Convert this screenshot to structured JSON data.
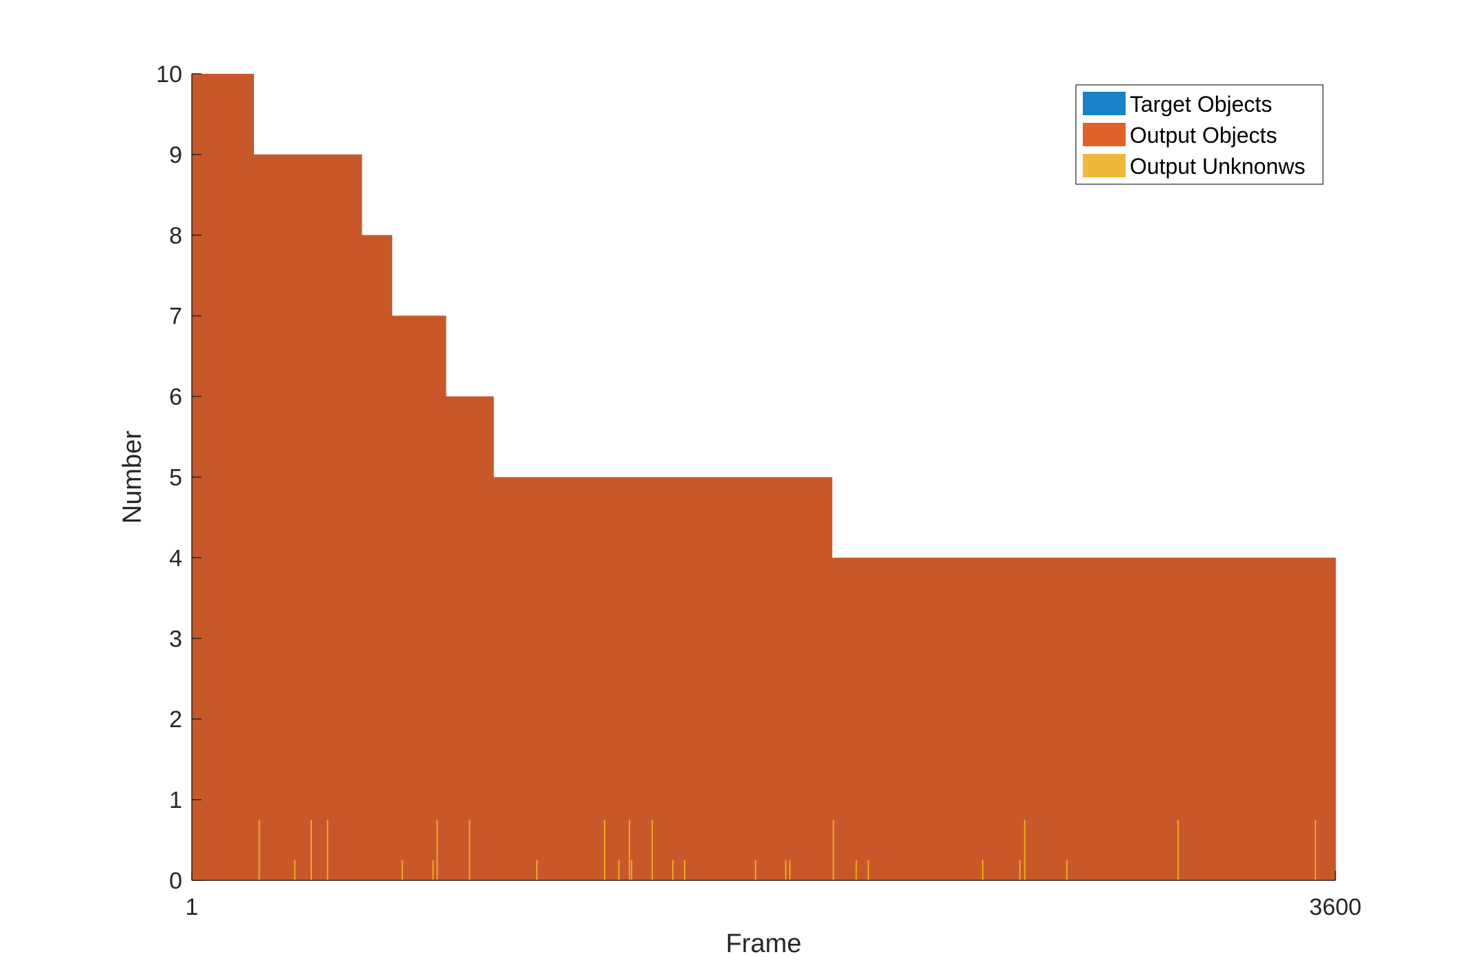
{
  "chart_data": {
    "type": "bar",
    "xlabel": "Frame",
    "ylabel": "Number",
    "xlim": [
      1,
      3600
    ],
    "ylim": [
      0,
      10
    ],
    "xticks": [
      {
        "value": 1,
        "label": "1"
      },
      {
        "value": 3600,
        "label": "3600"
      }
    ],
    "yticks": [
      {
        "value": 0,
        "label": "0"
      },
      {
        "value": 1,
        "label": "1"
      },
      {
        "value": 2,
        "label": "2"
      },
      {
        "value": 3,
        "label": "3"
      },
      {
        "value": 4,
        "label": "4"
      },
      {
        "value": 5,
        "label": "5"
      },
      {
        "value": 6,
        "label": "6"
      },
      {
        "value": 7,
        "label": "7"
      },
      {
        "value": 8,
        "label": "8"
      },
      {
        "value": 9,
        "label": "9"
      },
      {
        "value": 10,
        "label": "10"
      }
    ],
    "grid": false,
    "legend_position": "top-right",
    "series": [
      {
        "name": "Target Objects",
        "color": "#0072BD",
        "steps": [
          {
            "from": 1,
            "to": 195,
            "value": 10
          },
          {
            "from": 195,
            "to": 535,
            "value": 9
          },
          {
            "from": 535,
            "to": 630,
            "value": 8
          },
          {
            "from": 630,
            "to": 800,
            "value": 7
          },
          {
            "from": 800,
            "to": 950,
            "value": 6
          },
          {
            "from": 950,
            "to": 2015,
            "value": 5
          },
          {
            "from": 2015,
            "to": 3600,
            "value": 4
          }
        ]
      },
      {
        "name": "Output Objects",
        "color": "#D95319",
        "steps": [
          {
            "from": 1,
            "to": 195,
            "value": 10
          },
          {
            "from": 195,
            "to": 535,
            "value": 9
          },
          {
            "from": 535,
            "to": 630,
            "value": 8
          },
          {
            "from": 630,
            "to": 800,
            "value": 7
          },
          {
            "from": 800,
            "to": 950,
            "value": 6
          },
          {
            "from": 950,
            "to": 2015,
            "value": 5
          },
          {
            "from": 2015,
            "to": 3600,
            "value": 4
          }
        ]
      },
      {
        "name": "Output Unknonws",
        "color": "#EDB120",
        "spikes": [
          {
            "frame": 213,
            "value": 0.75
          },
          {
            "frame": 325,
            "value": 0.25
          },
          {
            "frame": 377,
            "value": 0.75
          },
          {
            "frame": 428,
            "value": 0.75
          },
          {
            "frame": 663,
            "value": 0.25
          },
          {
            "frame": 760,
            "value": 0.25
          },
          {
            "frame": 773,
            "value": 0.75
          },
          {
            "frame": 875,
            "value": 0.75
          },
          {
            "frame": 1087,
            "value": 0.25
          },
          {
            "frame": 1300,
            "value": 0.75
          },
          {
            "frame": 1345,
            "value": 0.25
          },
          {
            "frame": 1378,
            "value": 0.75
          },
          {
            "frame": 1385,
            "value": 0.25
          },
          {
            "frame": 1450,
            "value": 0.75
          },
          {
            "frame": 1515,
            "value": 0.25
          },
          {
            "frame": 1552,
            "value": 0.25
          },
          {
            "frame": 1775,
            "value": 0.25
          },
          {
            "frame": 1870,
            "value": 0.25
          },
          {
            "frame": 1883,
            "value": 0.25
          },
          {
            "frame": 2020,
            "value": 0.75
          },
          {
            "frame": 2092,
            "value": 0.25
          },
          {
            "frame": 2130,
            "value": 0.25
          },
          {
            "frame": 2490,
            "value": 0.25
          },
          {
            "frame": 2607,
            "value": 0.25
          },
          {
            "frame": 2622,
            "value": 0.75
          },
          {
            "frame": 2755,
            "value": 0.25
          },
          {
            "frame": 3105,
            "value": 0.75
          },
          {
            "frame": 3537,
            "value": 0.75
          }
        ]
      }
    ]
  }
}
